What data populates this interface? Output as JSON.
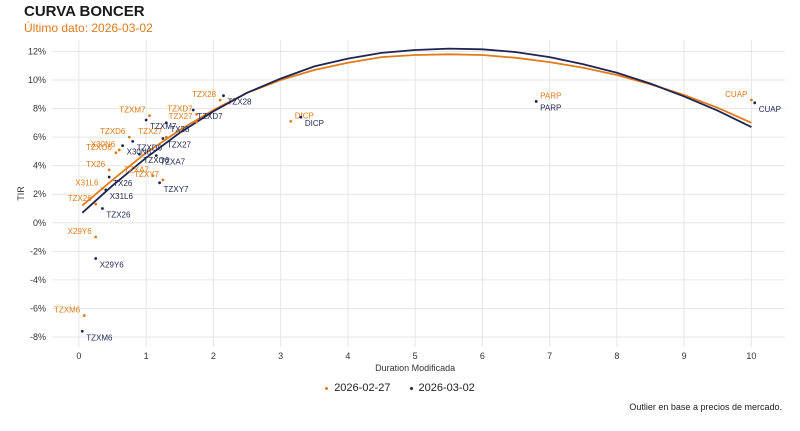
{
  "title": "CURVA BONCER",
  "subtitle": "Último dato: 2026-03-02",
  "footnote": "Outlier en base a precios de mercado.",
  "colors": {
    "series_prev": "#e07b1a",
    "series_curr": "#1f2552",
    "grid": "#e6e6e6"
  },
  "chart_data": {
    "type": "scatter",
    "xlabel": "Duration Modificada",
    "ylabel": "TIR",
    "xlim": [
      -0.4,
      10.5
    ],
    "ylim": [
      -8.7,
      12.8
    ],
    "x_ticks": [
      0,
      1,
      2,
      3,
      4,
      5,
      6,
      7,
      8,
      9,
      10
    ],
    "y_ticks": [
      -8,
      -6,
      -4,
      -2,
      0,
      2,
      4,
      6,
      8,
      10,
      12
    ],
    "y_tick_format": "percent",
    "grid": true,
    "legend_position": "bottom",
    "series": [
      {
        "name": "2026-02-27",
        "fit": [
          {
            "x": 0.05,
            "y": 1.2
          },
          {
            "x": 0.5,
            "y": 3.0
          },
          {
            "x": 1,
            "y": 4.9
          },
          {
            "x": 1.5,
            "y": 6.5
          },
          {
            "x": 2,
            "y": 7.9
          },
          {
            "x": 2.5,
            "y": 9.1
          },
          {
            "x": 3,
            "y": 10.0
          },
          {
            "x": 3.5,
            "y": 10.7
          },
          {
            "x": 4,
            "y": 11.2
          },
          {
            "x": 4.5,
            "y": 11.6
          },
          {
            "x": 5,
            "y": 11.75
          },
          {
            "x": 5.5,
            "y": 11.8
          },
          {
            "x": 6,
            "y": 11.75
          },
          {
            "x": 6.5,
            "y": 11.55
          },
          {
            "x": 7,
            "y": 11.25
          },
          {
            "x": 7.5,
            "y": 10.85
          },
          {
            "x": 8,
            "y": 10.35
          },
          {
            "x": 8.5,
            "y": 9.7
          },
          {
            "x": 9,
            "y": 8.95
          },
          {
            "x": 9.5,
            "y": 8.05
          },
          {
            "x": 10,
            "y": 7.0
          }
        ],
        "points": [
          {
            "label": "TZX28",
            "x": 2.1,
            "y": 8.6
          },
          {
            "label": "TZXD7",
            "x": 1.75,
            "y": 7.6
          },
          {
            "label": "TZXM7",
            "x": 1.05,
            "y": 7.5
          },
          {
            "label": "TZX27",
            "x": 1.75,
            "y": 7.05
          },
          {
            "label": "TZXD6",
            "x": 0.75,
            "y": 6.0
          },
          {
            "label": "TZX27",
            "x": 1.3,
            "y": 6.0
          },
          {
            "label": "X30N6",
            "x": 0.6,
            "y": 5.1
          },
          {
            "label": "TZXO6",
            "x": 0.55,
            "y": 4.9
          },
          {
            "label": "TX26",
            "x": 0.45,
            "y": 3.7
          },
          {
            "label": "TZXA7",
            "x": 1.1,
            "y": 3.3
          },
          {
            "label": "TZXY7",
            "x": 1.25,
            "y": 3.0
          },
          {
            "label": "X31L6",
            "x": 0.35,
            "y": 2.4
          },
          {
            "label": "TZX26",
            "x": 0.25,
            "y": 1.3
          },
          {
            "label": "X29Y6",
            "x": 0.25,
            "y": -1.0
          },
          {
            "label": "TZXM6",
            "x": 0.08,
            "y": -6.5
          },
          {
            "label": "DICP",
            "x": 3.15,
            "y": 7.1
          },
          {
            "label": "PARP",
            "x": 6.8,
            "y": 8.5
          },
          {
            "label": "CUAP",
            "x": 10.0,
            "y": 8.6
          }
        ]
      },
      {
        "name": "2026-03-02",
        "fit": [
          {
            "x": 0.05,
            "y": 0.7
          },
          {
            "x": 0.5,
            "y": 2.6
          },
          {
            "x": 1,
            "y": 4.55
          },
          {
            "x": 1.5,
            "y": 6.3
          },
          {
            "x": 2,
            "y": 7.8
          },
          {
            "x": 2.5,
            "y": 9.1
          },
          {
            "x": 3,
            "y": 10.1
          },
          {
            "x": 3.5,
            "y": 10.95
          },
          {
            "x": 4,
            "y": 11.5
          },
          {
            "x": 4.5,
            "y": 11.9
          },
          {
            "x": 5,
            "y": 12.1
          },
          {
            "x": 5.5,
            "y": 12.2
          },
          {
            "x": 6,
            "y": 12.15
          },
          {
            "x": 6.5,
            "y": 11.95
          },
          {
            "x": 7,
            "y": 11.6
          },
          {
            "x": 7.5,
            "y": 11.1
          },
          {
            "x": 8,
            "y": 10.5
          },
          {
            "x": 8.5,
            "y": 9.75
          },
          {
            "x": 9,
            "y": 8.85
          },
          {
            "x": 9.5,
            "y": 7.85
          },
          {
            "x": 10,
            "y": 6.7
          }
        ],
        "points": [
          {
            "label": "TZX28",
            "x": 2.15,
            "y": 8.9
          },
          {
            "label": "TZXD7",
            "x": 1.7,
            "y": 7.9
          },
          {
            "label": "TZXM7",
            "x": 1.0,
            "y": 7.2
          },
          {
            "label": "TX28",
            "x": 1.3,
            "y": 7.0
          },
          {
            "label": "TZXD6",
            "x": 0.8,
            "y": 5.7
          },
          {
            "label": "TZX27",
            "x": 1.25,
            "y": 5.9
          },
          {
            "label": "X30N6",
            "x": 0.65,
            "y": 5.4
          },
          {
            "label": "TZXO6",
            "x": 0.9,
            "y": 4.8
          },
          {
            "label": "TZXA7",
            "x": 1.15,
            "y": 4.7
          },
          {
            "label": "TX26",
            "x": 0.45,
            "y": 3.2
          },
          {
            "label": "TZXY7",
            "x": 1.2,
            "y": 2.8
          },
          {
            "label": "X31L6",
            "x": 0.4,
            "y": 2.3
          },
          {
            "label": "TZX26",
            "x": 0.35,
            "y": 1.0
          },
          {
            "label": "X29Y6",
            "x": 0.25,
            "y": -2.5
          },
          {
            "label": "TZXM6",
            "x": 0.05,
            "y": -7.6
          },
          {
            "label": "DICP",
            "x": 3.3,
            "y": 7.4
          },
          {
            "label": "PARP",
            "x": 6.8,
            "y": 8.5
          },
          {
            "label": "CUAP",
            "x": 10.05,
            "y": 8.4
          }
        ]
      }
    ]
  }
}
